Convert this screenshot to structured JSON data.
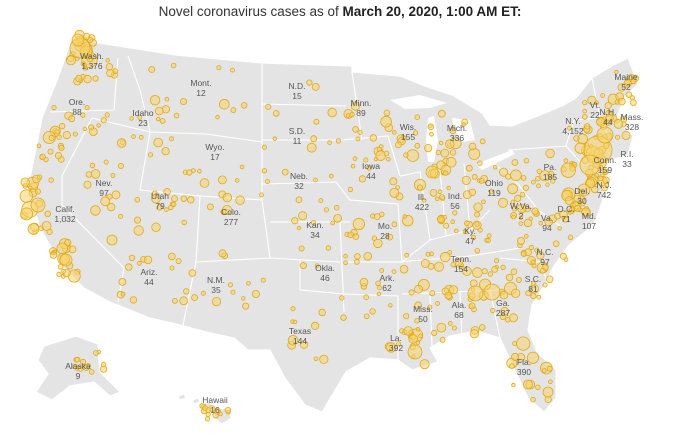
{
  "title": {
    "prefix": "Novel coronavirus cases as of ",
    "date": "March 20, 2020, 1:00 AM ET:"
  },
  "colors": {
    "land": "#e4e4e4",
    "dot_fill": "#f7d36a",
    "dot_stroke": "#e0a91a"
  },
  "states": [
    {
      "name": "Wash.",
      "count": "1,376"
    },
    {
      "name": "Ore.",
      "count": "88"
    },
    {
      "name": "Calif.",
      "count": "1,032"
    },
    {
      "name": "Nev.",
      "count": "97"
    },
    {
      "name": "Idaho",
      "count": "23"
    },
    {
      "name": "Mont.",
      "count": "12"
    },
    {
      "name": "Wyo.",
      "count": "17"
    },
    {
      "name": "Utah",
      "count": "79"
    },
    {
      "name": "Colo.",
      "count": "277"
    },
    {
      "name": "Ariz.",
      "count": "44"
    },
    {
      "name": "N.M.",
      "count": "35"
    },
    {
      "name": "N.D.",
      "count": "15"
    },
    {
      "name": "S.D.",
      "count": "11"
    },
    {
      "name": "Neb.",
      "count": "32"
    },
    {
      "name": "Kan.",
      "count": "34"
    },
    {
      "name": "Okla.",
      "count": "46"
    },
    {
      "name": "Texas",
      "count": "144"
    },
    {
      "name": "Minn.",
      "count": "89"
    },
    {
      "name": "Iowa",
      "count": "44"
    },
    {
      "name": "Mo.",
      "count": "28"
    },
    {
      "name": "Ark.",
      "count": "62"
    },
    {
      "name": "La.",
      "count": "392"
    },
    {
      "name": "Wis.",
      "count": "155"
    },
    {
      "name": "Ill.",
      "count": "422"
    },
    {
      "name": "Mich.",
      "count": "336"
    },
    {
      "name": "Ind.",
      "count": "56"
    },
    {
      "name": "Ohio",
      "count": "119"
    },
    {
      "name": "Ky.",
      "count": "47"
    },
    {
      "name": "Tenn.",
      "count": "154"
    },
    {
      "name": "Miss.",
      "count": "50"
    },
    {
      "name": "Ala.",
      "count": "68"
    },
    {
      "name": "Ga.",
      "count": "287"
    },
    {
      "name": "Fla.",
      "count": "390"
    },
    {
      "name": "S.C.",
      "count": "81"
    },
    {
      "name": "N.C.",
      "count": "97"
    },
    {
      "name": "Va.",
      "count": "94"
    },
    {
      "name": "W.Va.",
      "count": "2"
    },
    {
      "name": "Pa.",
      "count": "185"
    },
    {
      "name": "N.Y.",
      "count": "4,152"
    },
    {
      "name": "Vt.",
      "count": "22"
    },
    {
      "name": "N.H.",
      "count": "44"
    },
    {
      "name": "Maine",
      "count": "52"
    },
    {
      "name": "Mass.",
      "count": "328"
    },
    {
      "name": "R.I.",
      "count": "33"
    },
    {
      "name": "Conn.",
      "count": "159"
    },
    {
      "name": "N.J.",
      "count": "742"
    },
    {
      "name": "Del.",
      "count": "30"
    },
    {
      "name": "Md.",
      "count": "107"
    },
    {
      "name": "D.C.",
      "count": "71"
    },
    {
      "name": "Alaska",
      "count": "9"
    },
    {
      "name": "Hawaii",
      "count": "16"
    }
  ]
}
